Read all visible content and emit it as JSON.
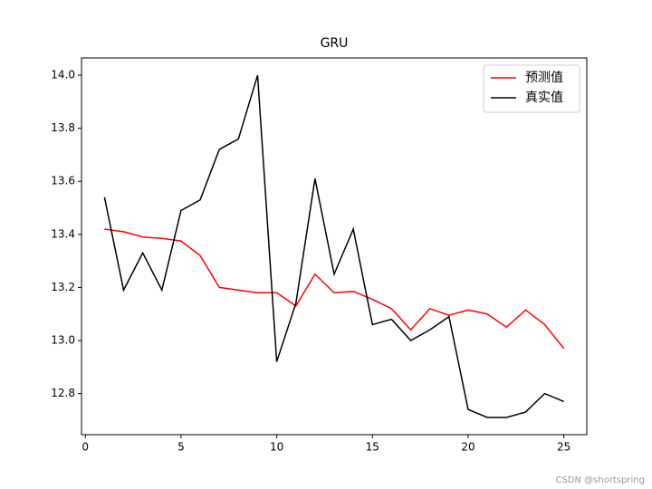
{
  "chart_data": {
    "type": "line",
    "title": "GRU",
    "x": [
      1,
      2,
      3,
      4,
      5,
      6,
      7,
      8,
      9,
      10,
      11,
      12,
      13,
      14,
      15,
      16,
      17,
      18,
      19,
      20,
      21,
      22,
      23,
      24,
      25
    ],
    "series": [
      {
        "name": "预测值",
        "color": "#ff0000",
        "values": [
          13.42,
          13.41,
          13.39,
          13.385,
          13.375,
          13.32,
          13.2,
          13.19,
          13.18,
          13.18,
          13.13,
          13.25,
          13.18,
          13.185,
          13.155,
          13.12,
          13.04,
          13.12,
          13.095,
          13.115,
          13.1,
          13.05,
          13.115,
          13.06,
          12.97
        ]
      },
      {
        "name": "真实值",
        "color": "#000000",
        "values": [
          13.54,
          13.19,
          13.33,
          13.19,
          13.49,
          13.53,
          13.72,
          13.76,
          14.0,
          12.92,
          13.14,
          13.61,
          13.25,
          13.42,
          13.06,
          13.08,
          13.0,
          13.04,
          13.09,
          12.74,
          12.71,
          12.71,
          12.73,
          12.8,
          12.77
        ]
      }
    ],
    "xlim": [
      -0.2,
      26.2
    ],
    "xticks": [
      0,
      5,
      10,
      15,
      20,
      25
    ],
    "ylim": [
      12.645,
      14.065
    ],
    "yticks": [
      12.8,
      {
        "value": 13,
        "label": "13.0"
      },
      13.2,
      13.4,
      13.6,
      13.8,
      {
        "value": 14,
        "label": "14.0"
      }
    ],
    "grid": false,
    "legend": "upper right",
    "watermark": "CSDN @shortspring"
  }
}
